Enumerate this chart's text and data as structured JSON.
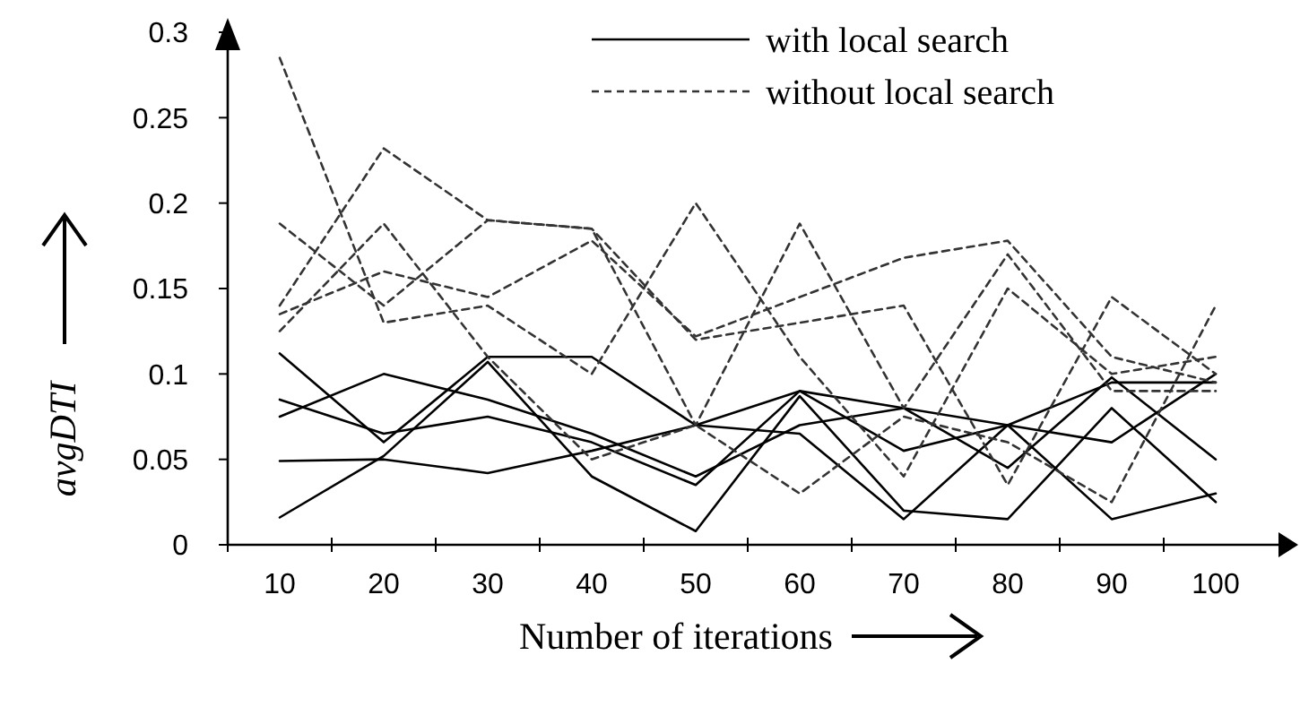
{
  "chart_data": {
    "type": "line",
    "xlabel": "Number of iterations",
    "ylabel": "avgDTI",
    "categories": [
      "10",
      "20",
      "30",
      "40",
      "50",
      "60",
      "70",
      "80",
      "90",
      "100"
    ],
    "ylim": [
      0,
      0.3
    ],
    "yticks": [
      0,
      0.05,
      0.1,
      0.15,
      0.2,
      0.25,
      0.3
    ],
    "grid": false,
    "legend": "top right",
    "marker": "none",
    "series": [
      {
        "name": "with local search",
        "color": "#000000",
        "line_style": "solid",
        "values": [
          0.112,
          0.06,
          0.11,
          0.11,
          0.07,
          0.09,
          0.055,
          0.07,
          0.095,
          0.095
        ]
      },
      {
        "color": "#000000",
        "line_style": "solid",
        "values": [
          0.085,
          0.065,
          0.075,
          0.06,
          0.035,
          0.09,
          0.08,
          0.07,
          0.06,
          0.1
        ]
      },
      {
        "color": "#000000",
        "line_style": "solid",
        "values": [
          0.075,
          0.1,
          0.085,
          0.065,
          0.04,
          0.07,
          0.08,
          0.045,
          0.098,
          0.05
        ]
      },
      {
        "color": "#000000",
        "line_style": "solid",
        "values": [
          0.049,
          0.05,
          0.042,
          0.055,
          0.07,
          0.065,
          0.015,
          0.07,
          0.015,
          0.03
        ]
      },
      {
        "color": "#000000",
        "line_style": "solid",
        "values": [
          0.016,
          0.052,
          0.107,
          0.04,
          0.008,
          0.087,
          0.02,
          0.015,
          0.08,
          0.025
        ]
      },
      {
        "name": "without local search",
        "color": "#333333",
        "line_style": "dashed",
        "values": [
          0.285,
          0.13,
          0.14,
          0.1,
          0.2,
          0.11,
          0.04,
          0.15,
          0.1,
          0.11
        ]
      },
      {
        "color": "#333333",
        "line_style": "dashed",
        "values": [
          0.188,
          0.14,
          0.19,
          0.185,
          0.07,
          0.188,
          0.08,
          0.17,
          0.09,
          0.09
        ]
      },
      {
        "color": "#333333",
        "line_style": "dashed",
        "values": [
          0.14,
          0.232,
          0.19,
          0.185,
          0.12,
          0.13,
          0.14,
          0.035,
          0.145,
          0.1
        ]
      },
      {
        "color": "#333333",
        "line_style": "dashed",
        "values": [
          0.135,
          0.16,
          0.145,
          0.178,
          0.122,
          0.145,
          0.168,
          0.178,
          0.11,
          0.095
        ]
      },
      {
        "color": "#333333",
        "line_style": "dashed",
        "values": [
          0.125,
          0.188,
          0.11,
          0.05,
          0.07,
          0.03,
          0.075,
          0.06,
          0.025,
          0.14
        ]
      }
    ]
  }
}
